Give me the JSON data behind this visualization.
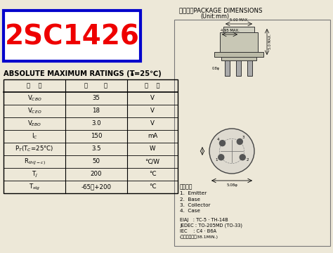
{
  "title": "2SC1426",
  "bg_color": "#ede8d8",
  "title_color": "#ee0000",
  "title_border_color": "#0000cc",
  "pkg_title": "外形図／PACKAGE DIMENSIONS",
  "pkg_unit": "(Unit:mm)",
  "table_header": [
    "略    号",
    "定        格",
    "单    位"
  ],
  "table_rows": [
    [
      "V$_{CBO}$",
      "35",
      "V"
    ],
    [
      "V$_{CEO}$",
      "18",
      "V"
    ],
    [
      "V$_{EBO}$",
      "3.0",
      "V"
    ],
    [
      "I$_C$",
      "150",
      "mA"
    ],
    [
      "P$_T$(T$_C$=25°C)",
      "3.5",
      "W"
    ],
    [
      "R$_{th(J-c)}$",
      "50",
      "℃/W"
    ],
    [
      "T$_J$",
      "200",
      "℃"
    ],
    [
      "T$_{stg}$",
      "-65～+200",
      "℃"
    ]
  ],
  "pin_notes": [
    "電極標記",
    "1.  Emitter",
    "2.  Base",
    "3.  Collector",
    "4.  Case"
  ],
  "std_notes": [
    "EIAJ   : TC-5 · TH-14B",
    "JEDEC : TO-205MD (TO-33)",
    "IEC    : C4 · B6A",
    "(リード間隔は38.1MIN.)"
  ],
  "dim_top1": "5.00 MAX.",
  "dim_top2": "4.95 MAX.",
  "dim_side": "5.0 MAX.",
  "dim_pin": "0.8φ",
  "dim_diam": "5.08φ"
}
